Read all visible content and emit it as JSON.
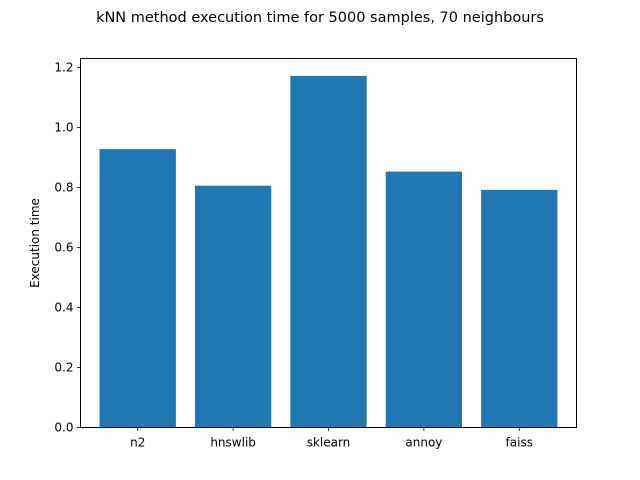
{
  "chart_data": {
    "type": "bar",
    "title": "kNN method execution time for 5000 samples, 70 neighbours",
    "xlabel": "",
    "ylabel": "Execution time",
    "categories": [
      "n2",
      "hnswlib",
      "sklearn",
      "annoy",
      "faiss"
    ],
    "values": [
      0.928,
      0.806,
      1.172,
      0.853,
      0.792
    ],
    "ylim": [
      0,
      1.23
    ],
    "yticks": [
      0.0,
      0.2,
      0.4,
      0.6,
      0.8,
      1.0,
      1.2
    ],
    "ytick_labels": [
      "0.0",
      "0.2",
      "0.4",
      "0.6",
      "0.8",
      "1.0",
      "1.2"
    ],
    "grid": false,
    "legend": "none",
    "bar_color": "#1f77b4"
  }
}
